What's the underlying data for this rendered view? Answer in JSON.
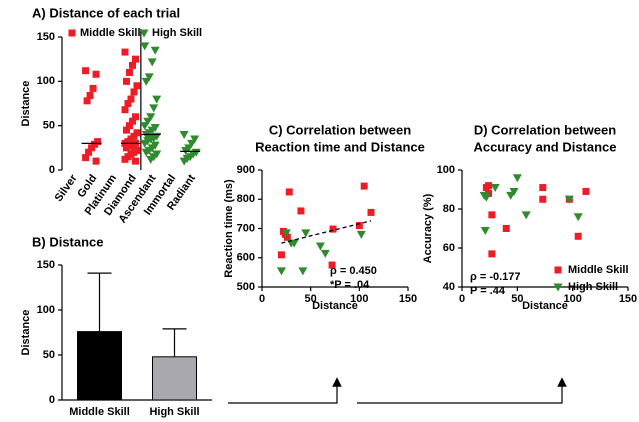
{
  "chart_data": [
    {
      "type": "strip",
      "title": "A) Distance of each trial",
      "ylabel": "Distance",
      "categories": [
        "Silver",
        "Gold",
        "Platinum",
        "Diamond",
        "Ascendant",
        "Immortal",
        "Radiant"
      ],
      "ylim": [
        0,
        150
      ],
      "yticks": [
        0,
        50,
        100,
        150
      ],
      "legend": "top",
      "divider_after": 3,
      "series": [
        {
          "name": "Middle Skill",
          "color": "#ee1c25",
          "marker": "square",
          "values": [
            [],
            [
              112,
              108,
              92,
              84,
              78,
              32,
              29,
              25,
              20,
              14,
              10
            ],
            [],
            [
              133,
              125,
              118,
              110,
              100,
              95,
              88,
              80,
              75,
              68,
              60,
              55,
              50,
              45,
              42,
              38,
              35,
              32,
              30,
              30,
              28,
              27,
              25,
              22,
              20,
              18,
              15,
              12,
              10
            ],
            [],
            [],
            []
          ],
          "medians": [
            null,
            30,
            null,
            30,
            null,
            null,
            null
          ]
        },
        {
          "name": "High Skill",
          "color": "#2e8b2e",
          "marker": "triangle",
          "values": [
            [],
            [],
            [],
            [],
            [
              140,
              135,
              122,
              105,
              100,
              80,
              70,
              60,
              55,
              50,
              48,
              45,
              42,
              40,
              38,
              36,
              35,
              33,
              30,
              28,
              25,
              22,
              20,
              18,
              15,
              12
            ],
            [],
            [
              40,
              35,
              30,
              25,
              22,
              20,
              18,
              15,
              13,
              10
            ]
          ],
          "medians": [
            null,
            null,
            null,
            null,
            40,
            null,
            21
          ]
        }
      ]
    },
    {
      "type": "bar",
      "title": "B) Distance",
      "ylabel": "Distance",
      "categories": [
        "Middle Skill",
        "High Skill"
      ],
      "values": [
        76,
        48
      ],
      "errors": [
        65,
        31
      ],
      "colors": [
        "#000000",
        "#a8a8ae"
      ],
      "ylim": [
        0,
        150
      ],
      "yticks": [
        0,
        50,
        100,
        150
      ]
    },
    {
      "type": "scatter",
      "title": [
        "C) Correlation between",
        "Reaction time and Distance"
      ],
      "xlabel": "Distance",
      "ylabel": "Reaction time (ms)",
      "xlim": [
        0,
        150
      ],
      "xticks": [
        0,
        50,
        100,
        150
      ],
      "ylim": [
        500,
        900
      ],
      "yticks": [
        500,
        600,
        700,
        800,
        900
      ],
      "trendline": true,
      "annotations": [
        "ρ = 0.450",
        "*P = .04"
      ],
      "series": [
        {
          "name": "Middle Skill",
          "color": "#ee1c25",
          "marker": "square",
          "x": [
            24,
            28,
            40,
            20,
            26,
            73,
            72,
            100,
            105,
            112,
            22
          ],
          "values": [
            680,
            825,
            760,
            610,
            670,
            698,
            575,
            710,
            845,
            755,
            690
          ]
        },
        {
          "name": "High Skill",
          "color": "#2e8b2e",
          "marker": "triangle",
          "x": [
            20,
            25,
            45,
            42,
            60,
            65,
            33,
            102,
            30
          ],
          "values": [
            555,
            685,
            685,
            555,
            640,
            615,
            650,
            680,
            650
          ]
        }
      ]
    },
    {
      "type": "scatter",
      "title": [
        "D) Correlation between",
        "Accuracy and Distance"
      ],
      "xlabel": "Distance",
      "ylabel": "Accuracy (%)",
      "xlim": [
        0,
        150
      ],
      "xticks": [
        0,
        50,
        100,
        150
      ],
      "ylim": [
        40,
        100
      ],
      "yticks": [
        40,
        60,
        80,
        100
      ],
      "legend": "lower right",
      "annotations": [
        "ρ = -0.177",
        "P = .44"
      ],
      "series": [
        {
          "name": "Middle Skill",
          "color": "#ee1c25",
          "marker": "square",
          "x": [
            22,
            24,
            27,
            27,
            40,
            73,
            73,
            97,
            105,
            112,
            24
          ],
          "values": [
            91,
            88,
            77,
            57,
            70,
            91,
            85,
            85,
            66,
            89,
            92
          ]
        },
        {
          "name": "High Skill",
          "color": "#2e8b2e",
          "marker": "triangle",
          "x": [
            20,
            21,
            30,
            44,
            47,
            50,
            58,
            97,
            105,
            22
          ],
          "values": [
            87,
            69,
            91,
            87,
            89,
            96,
            77,
            85,
            76,
            86
          ]
        }
      ]
    }
  ]
}
